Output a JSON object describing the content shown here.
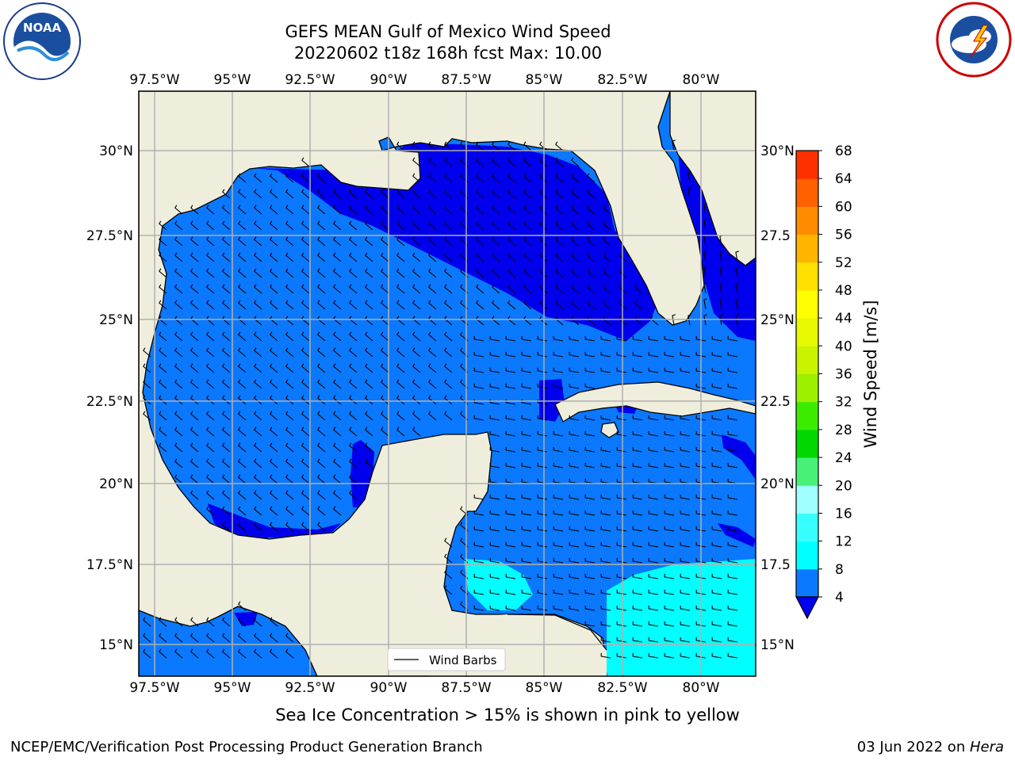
{
  "title_line1": "GEFS MEAN Gulf of Mexico Wind Speed",
  "title_line2": "20220602 t18z 168h fcst   Max: 10.00",
  "subtitle": "Sea Ice Concentration > 15% is shown in pink to yellow",
  "credit": "NCEP/EMC/Verification Post Processing Product Generation Branch",
  "stamp_date": "03 Jun 2022 on ",
  "stamp_machine": "Hera",
  "legend_label": "Wind Barbs",
  "colorbar_label": "Wind Speed [m/s]",
  "lon_ticks": [
    "97.5°W",
    "95°W",
    "92.5°W",
    "90°W",
    "87.5°W",
    "85°W",
    "82.5°W",
    "80°W"
  ],
  "lat_ticks": [
    "30°N",
    "27.5°N",
    "25°N",
    "22.5°N",
    "20°N",
    "17.5°N",
    "15°N"
  ],
  "lat_ticks_right": [
    "30°N",
    "27.5",
    "25°N",
    "22.5",
    "20°N",
    "17.5",
    "15°N"
  ],
  "colorbar": {
    "levels": [
      4,
      8,
      12,
      16,
      20,
      24,
      28,
      32,
      36,
      40,
      44,
      48,
      52,
      56,
      60,
      64,
      68
    ],
    "colors": [
      "#0a78ff",
      "#00ffff",
      "#38ffff",
      "#a0ffff",
      "#48f078",
      "#00d800",
      "#3cec00",
      "#9cf000",
      "#c8f400",
      "#e8f800",
      "#ffff00",
      "#ffe000",
      "#ffb400",
      "#ff8c00",
      "#ff6000",
      "#ff3000"
    ],
    "under_color": "#0000ee"
  },
  "colors": {
    "land": "#efeedd",
    "ocean_4_8": "#0a78ff",
    "ocean_lt4": "#0000ee",
    "ocean_8_12": "#00ffff",
    "grid": "#b0b0b0"
  },
  "logos": {
    "left": "noaa-logo",
    "right": "nws-logo"
  }
}
